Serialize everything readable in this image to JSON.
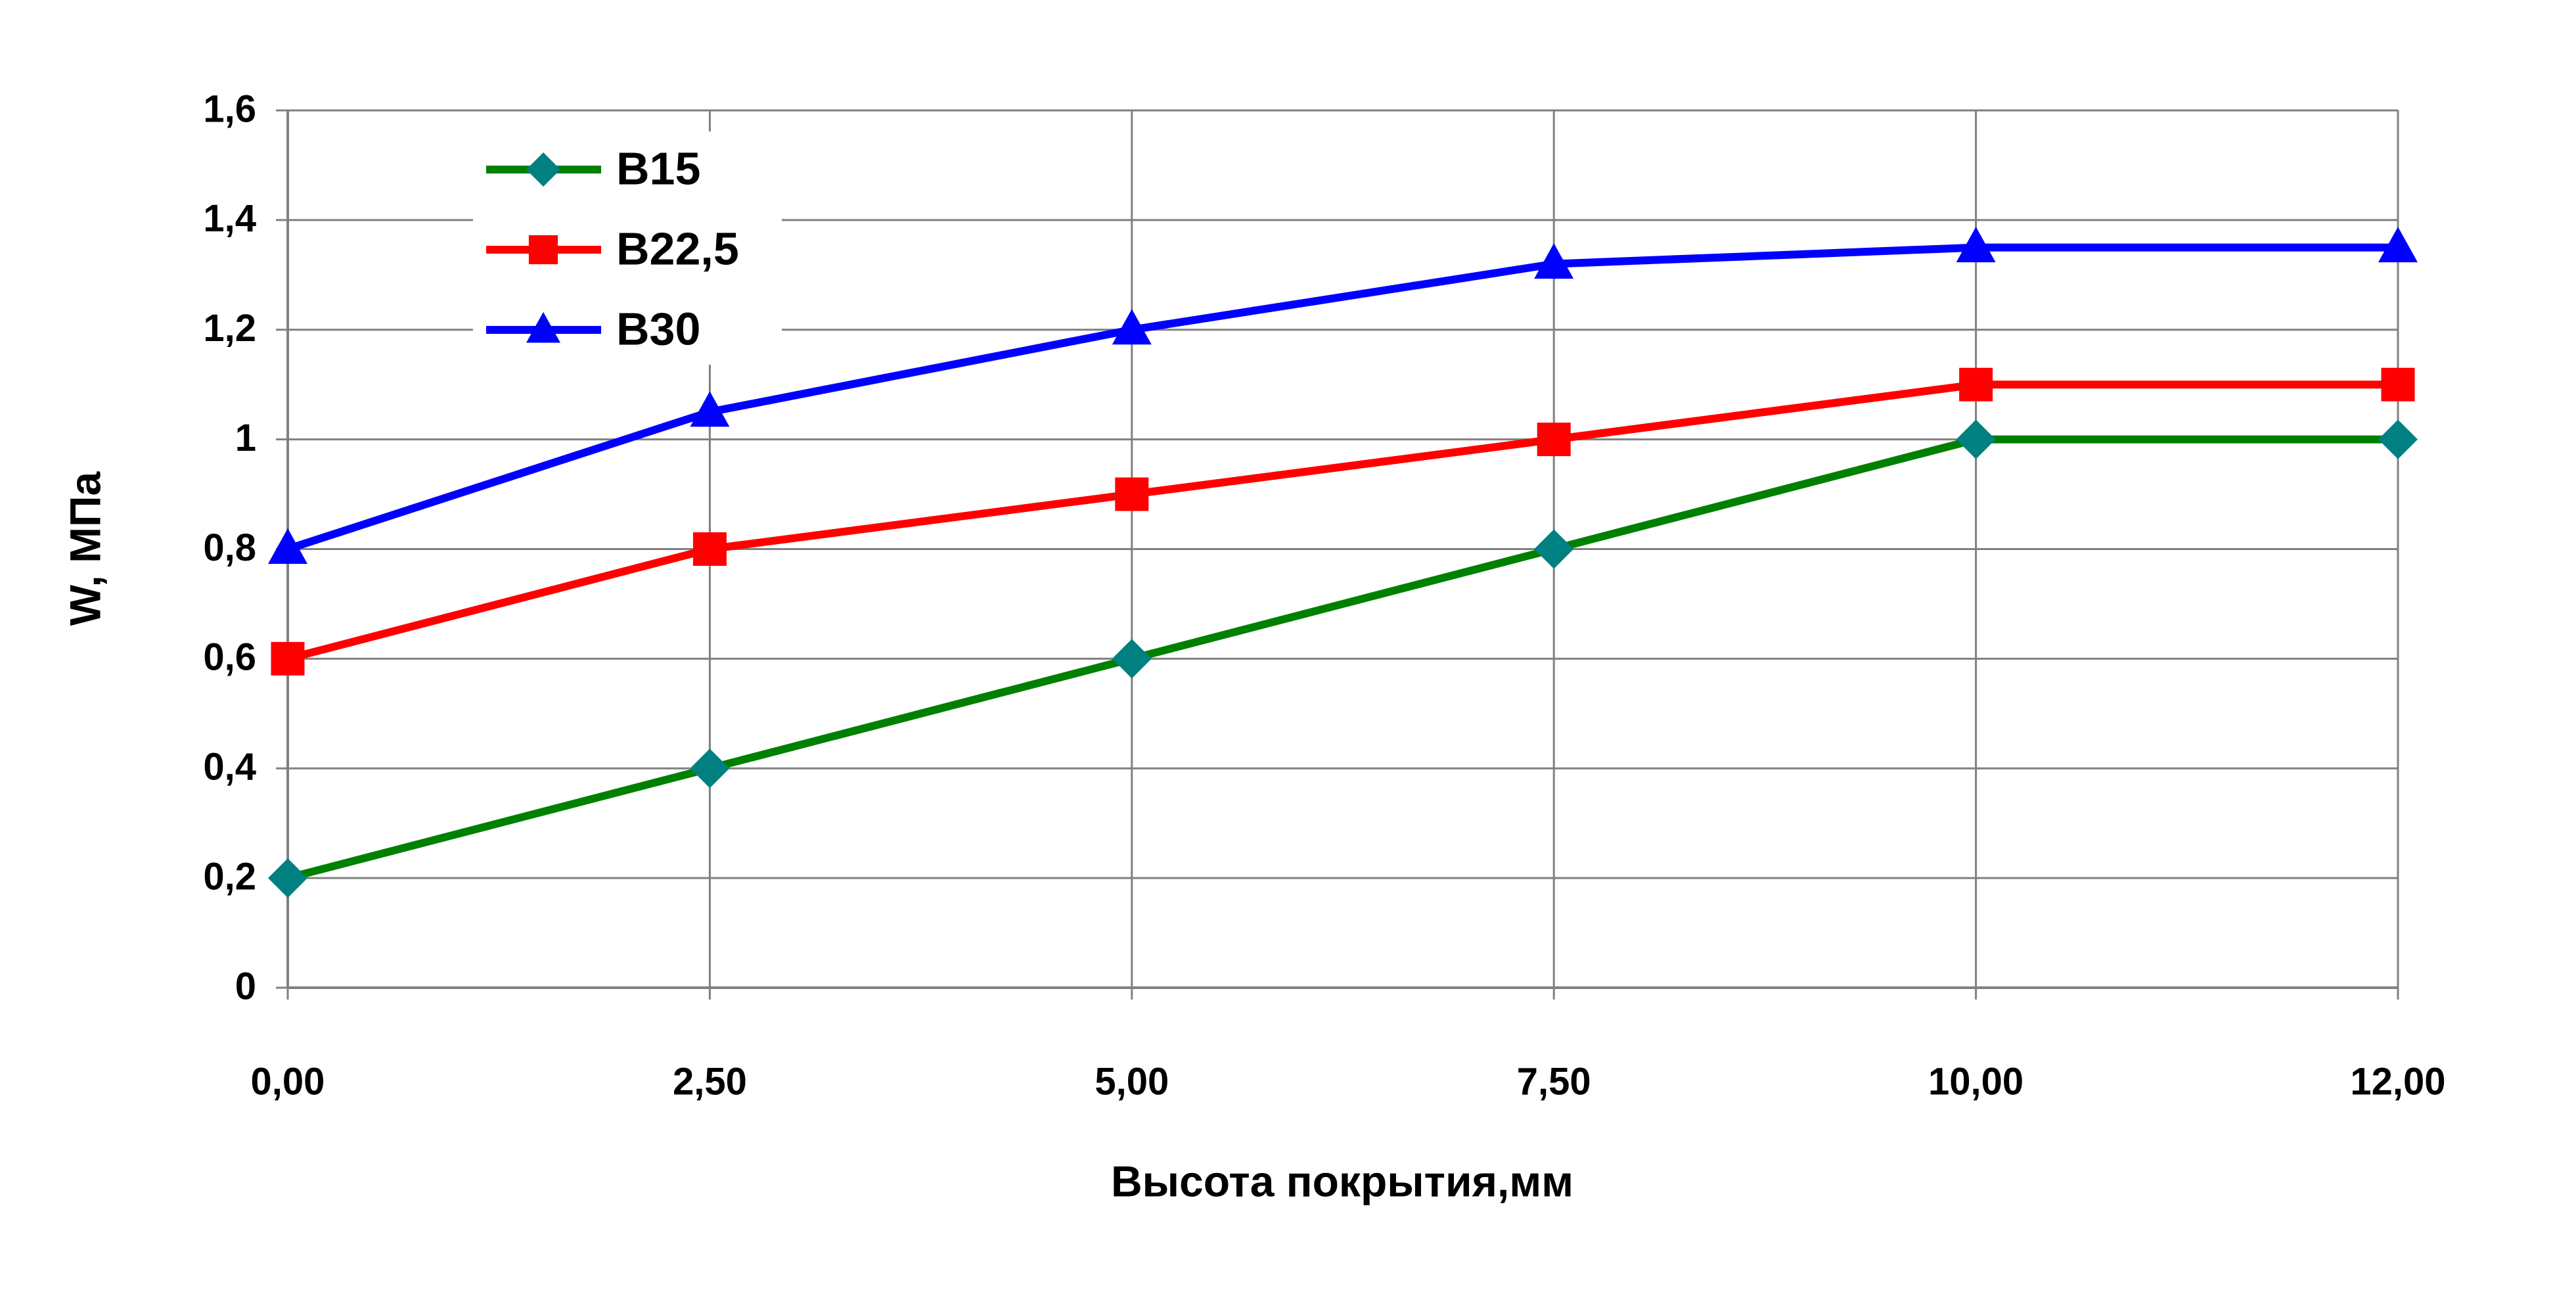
{
  "chart_data": {
    "type": "line",
    "x_label": "Высота покрытия,мм",
    "y_label": "W, МПа",
    "categories": [
      "0,00",
      "2,50",
      "5,00",
      "7,50",
      "10,00",
      "12,00"
    ],
    "series": [
      {
        "name": "B15",
        "color": "#008000",
        "marker_color": "#008080",
        "marker": "diamond",
        "values": [
          0.2,
          0.4,
          0.6,
          0.8,
          1.0,
          1.0
        ]
      },
      {
        "name": "B22,5",
        "color": "#ff0000",
        "marker_color": "#ff0000",
        "marker": "square",
        "values": [
          0.6,
          0.8,
          0.9,
          1.0,
          1.1,
          1.1
        ]
      },
      {
        "name": "B30",
        "color": "#0000ff",
        "marker_color": "#0000ff",
        "marker": "triangle",
        "values": [
          0.8,
          1.05,
          1.2,
          1.32,
          1.35,
          1.35
        ]
      }
    ],
    "ylim": [
      0,
      1.6
    ],
    "yticks": [
      0,
      {
        "value": 0.2,
        "label": "0,2"
      },
      {
        "value": 0.4,
        "label": "0,4"
      },
      {
        "value": 0.6,
        "label": "0,6"
      },
      {
        "value": 0.8,
        "label": "0,8"
      },
      1,
      {
        "value": 1.2,
        "label": "1,2"
      },
      {
        "value": 1.4,
        "label": "1,4"
      },
      {
        "value": 1.6,
        "label": "1,6"
      }
    ],
    "grid": true,
    "legend": "upper left"
  }
}
